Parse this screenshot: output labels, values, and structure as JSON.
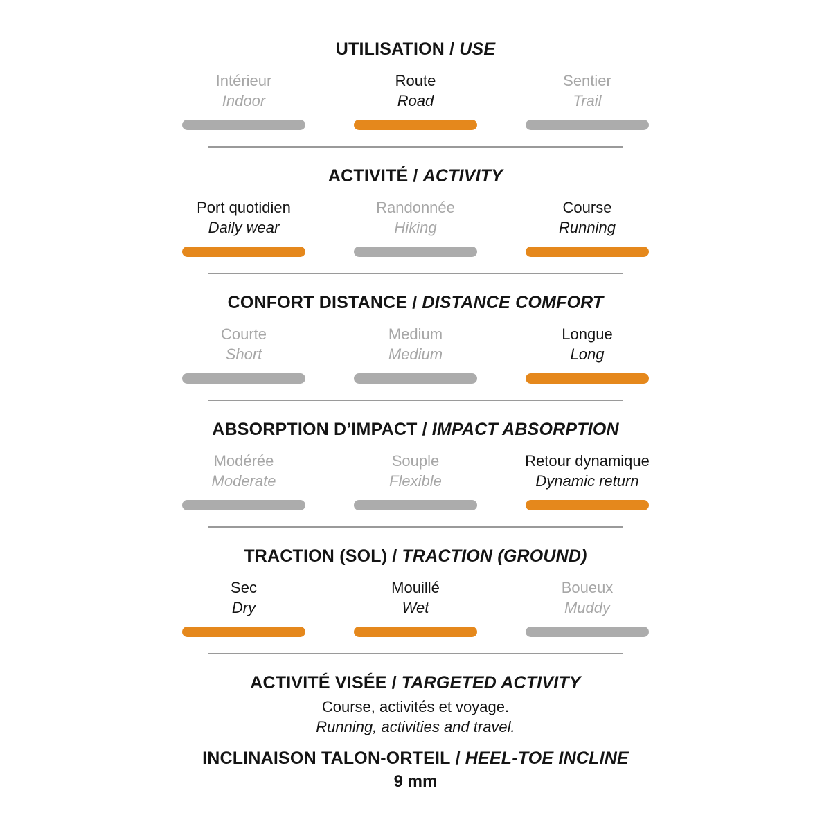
{
  "separator": "/",
  "colors": {
    "accent": "#e5881c",
    "inactive_bar": "#acacac",
    "inactive_text": "#a7a7a7",
    "active_text": "#141414",
    "divider": "#9a9a9a"
  },
  "sections": [
    {
      "title_fr": "UTILISATION",
      "title_en": "USE",
      "options": [
        {
          "fr": "Intérieur",
          "en": "Indoor",
          "active": false
        },
        {
          "fr": "Route",
          "en": "Road",
          "active": true
        },
        {
          "fr": "Sentier",
          "en": "Trail",
          "active": false
        }
      ]
    },
    {
      "title_fr": "ACTIVITÉ",
      "title_en": "ACTIVITY",
      "options": [
        {
          "fr": "Port quotidien",
          "en": "Daily wear",
          "active": true
        },
        {
          "fr": "Randonnée",
          "en": "Hiking",
          "active": false
        },
        {
          "fr": "Course",
          "en": "Running",
          "active": true
        }
      ]
    },
    {
      "title_fr": "CONFORT DISTANCE",
      "title_en": "DISTANCE COMFORT",
      "options": [
        {
          "fr": "Courte",
          "en": "Short",
          "active": false
        },
        {
          "fr": "Medium",
          "en": "Medium",
          "active": false
        },
        {
          "fr": "Longue",
          "en": "Long",
          "active": true
        }
      ]
    },
    {
      "title_fr": "ABSORPTION D’IMPACT",
      "title_en": "IMPACT ABSORPTION",
      "options": [
        {
          "fr": "Modérée",
          "en": "Moderate",
          "active": false
        },
        {
          "fr": "Souple",
          "en": "Flexible",
          "active": false
        },
        {
          "fr": "Retour dynamique",
          "en": "Dynamic return",
          "active": true
        }
      ]
    },
    {
      "title_fr": "TRACTION (SOL)",
      "title_en": "TRACTION (GROUND)",
      "options": [
        {
          "fr": "Sec",
          "en": "Dry",
          "active": true
        },
        {
          "fr": "Mouillé",
          "en": "Wet",
          "active": true
        },
        {
          "fr": "Boueux",
          "en": "Muddy",
          "active": false
        }
      ]
    }
  ],
  "footer": {
    "targeted_title_fr": "ACTIVITÉ VISÉE",
    "targeted_title_en": "TARGETED ACTIVITY",
    "targeted_line_fr": "Course, activités et voyage.",
    "targeted_line_en": "Running, activities and travel.",
    "incline_title_fr": "INCLINAISON TALON-ORTEIL",
    "incline_title_en": "HEEL-TOE INCLINE",
    "incline_value": "9 mm"
  }
}
